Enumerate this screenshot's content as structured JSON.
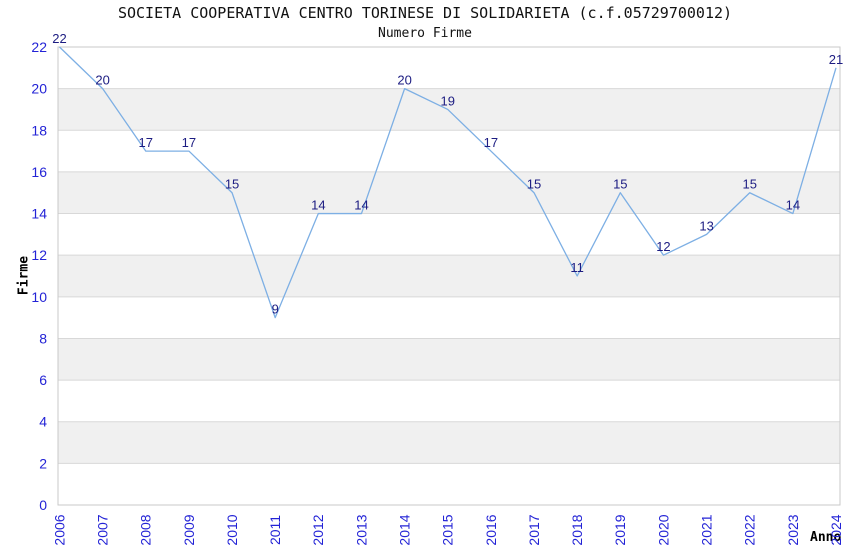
{
  "chart_data": {
    "type": "line",
    "title": "SOCIETA COOPERATIVA CENTRO TORINESE DI SOLIDARIETA (c.f.05729700012)",
    "subtitle": "Numero Firme",
    "xlabel": "Anno",
    "ylabel": "Firme",
    "categories": [
      "2006",
      "2007",
      "2008",
      "2009",
      "2010",
      "2011",
      "2012",
      "2013",
      "2014",
      "2015",
      "2016",
      "2017",
      "2018",
      "2019",
      "2020",
      "2021",
      "2022",
      "2023",
      "2024"
    ],
    "series": [
      {
        "name": "Numero Firme",
        "values": [
          22,
          20,
          17,
          17,
          15,
          9,
          14,
          14,
          20,
          19,
          17,
          15,
          11,
          15,
          12,
          13,
          15,
          14,
          21
        ]
      }
    ],
    "data_labels_visible": true,
    "ylim": [
      0,
      22
    ],
    "ytick_step": 2,
    "grid": "horizontal",
    "band_fill": "alternating",
    "legend": "none",
    "colors": {
      "line": "#7dafe4",
      "data_label": "#1c1c82",
      "tick_label": "#2323d6",
      "band": "#f0f0f0",
      "grid": "#d8d8d8",
      "border": "#c9c9c9",
      "title": "#111111",
      "axis_title": "#000000",
      "background": "#ffffff"
    }
  }
}
